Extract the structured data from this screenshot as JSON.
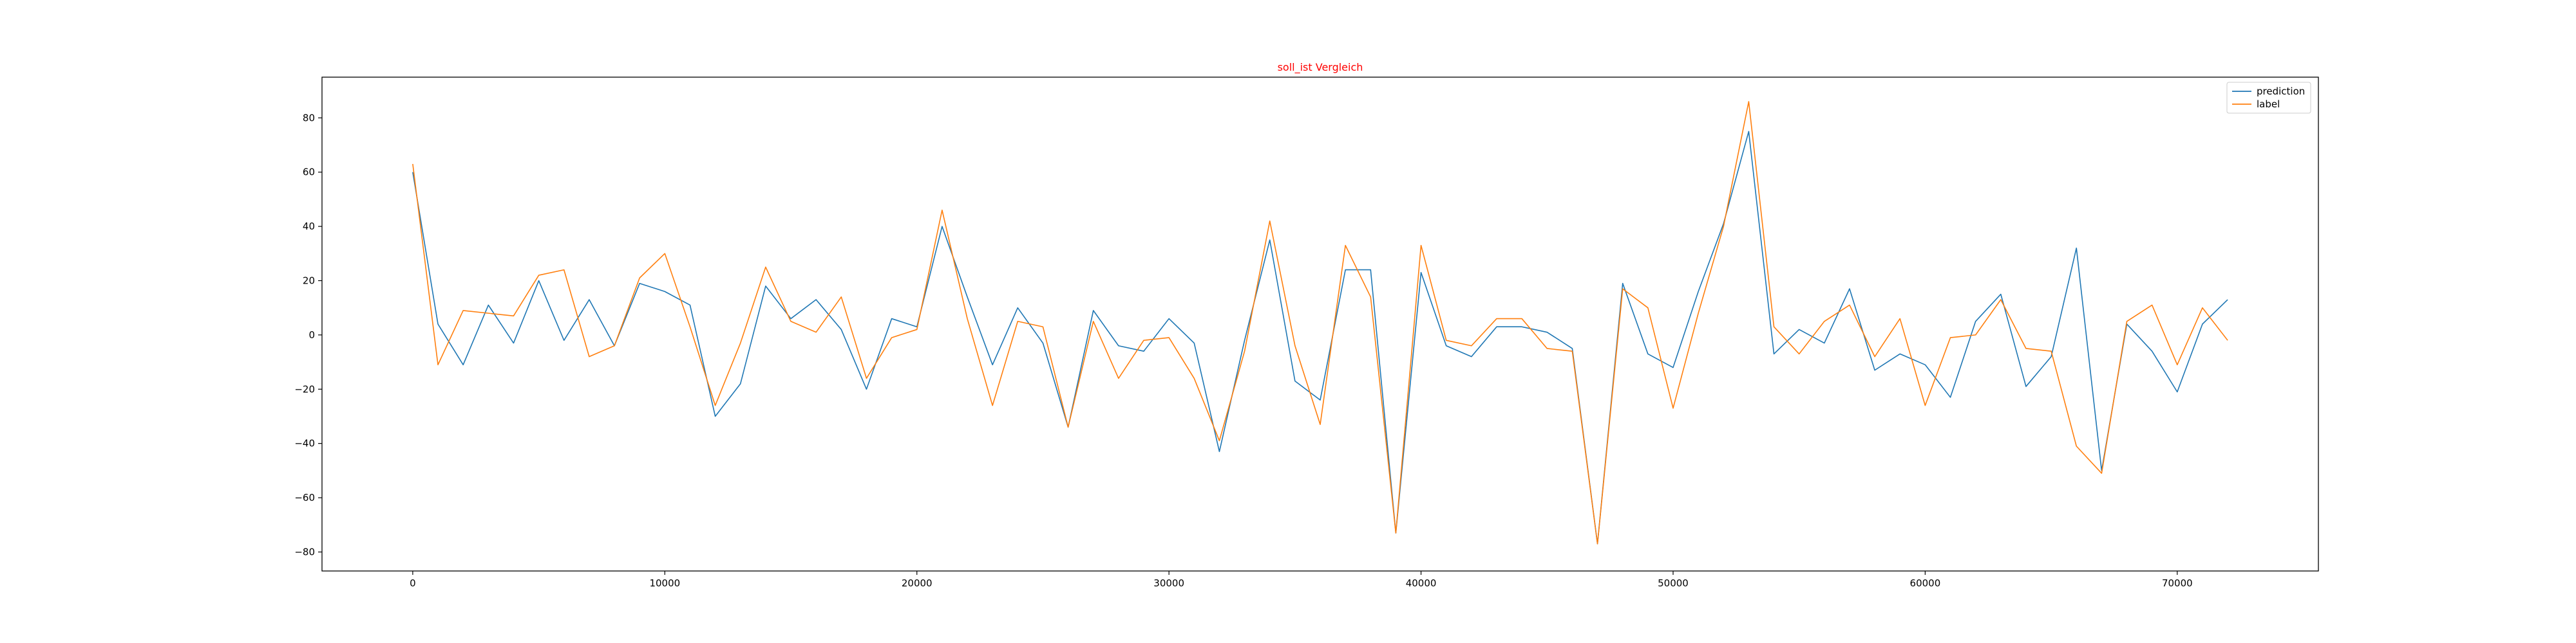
{
  "chart_data": {
    "type": "line",
    "title": "soll_ist Vergleich",
    "title_color": "#ff0000",
    "xlabel": "",
    "ylabel": "",
    "xlim": [
      -3600,
      75600
    ],
    "ylim": [
      -87,
      95
    ],
    "xticks": [
      0,
      10000,
      20000,
      30000,
      40000,
      50000,
      60000,
      70000
    ],
    "yticks": [
      -80,
      -60,
      -40,
      -20,
      0,
      20,
      40,
      60,
      80
    ],
    "grid": false,
    "legend": {
      "placement": "top-right"
    },
    "x": [
      0,
      1000,
      2000,
      3000,
      4000,
      5000,
      6000,
      7000,
      8000,
      9000,
      10000,
      11000,
      12000,
      13000,
      14000,
      15000,
      16000,
      17000,
      18000,
      19000,
      20000,
      21000,
      22000,
      23000,
      24000,
      25000,
      26000,
      27000,
      28000,
      29000,
      30000,
      31000,
      32000,
      33000,
      34000,
      35000,
      36000,
      37000,
      38000,
      39000,
      40000,
      41000,
      42000,
      43000,
      44000,
      45000,
      46000,
      47000,
      48000,
      49000,
      50000,
      51000,
      52000,
      53000,
      54000,
      55000,
      56000,
      57000,
      58000,
      59000,
      60000,
      61000,
      62000,
      63000,
      64000,
      65000,
      66000,
      67000,
      68000,
      69000,
      70000,
      71000,
      72000
    ],
    "series": [
      {
        "name": "prediction",
        "color": "#1f77b4",
        "values": [
          60,
          4,
          -11,
          11,
          -3,
          20,
          -2,
          13,
          -4,
          19,
          16,
          11,
          -30,
          -18,
          18,
          6,
          13,
          2,
          -20,
          6,
          3,
          40,
          14,
          -11,
          10,
          -3,
          -34,
          9,
          -4,
          -6,
          6,
          -3,
          -43,
          -2,
          35,
          -17,
          -24,
          24,
          24,
          -73,
          23,
          -4,
          -8,
          3,
          3,
          1,
          -5,
          -77,
          19,
          -7,
          -12,
          16,
          41,
          75,
          -7,
          2,
          -3,
          17,
          -13,
          -7,
          -11,
          -23,
          5,
          15,
          -19,
          -8,
          32,
          -50,
          4,
          -6,
          -21,
          4,
          13
        ]
      },
      {
        "name": "label",
        "color": "#ff7f0e",
        "values": [
          63,
          -11,
          9,
          8,
          7,
          22,
          24,
          -8,
          -4,
          21,
          30,
          3,
          -26,
          -3,
          25,
          5,
          1,
          14,
          -16,
          -1,
          2,
          46,
          6,
          -26,
          5,
          3,
          -34,
          5,
          -16,
          -2,
          -1,
          -16,
          -39,
          -6,
          42,
          -4,
          -33,
          33,
          14,
          -73,
          33,
          -2,
          -4,
          6,
          6,
          -5,
          -6,
          -77,
          17,
          10,
          -27,
          8,
          40,
          86,
          3,
          -7,
          5,
          11,
          -8,
          6,
          -26,
          -1,
          0,
          13,
          -5,
          -6,
          -41,
          -51,
          5,
          11,
          -11,
          10,
          -2
        ]
      }
    ]
  }
}
